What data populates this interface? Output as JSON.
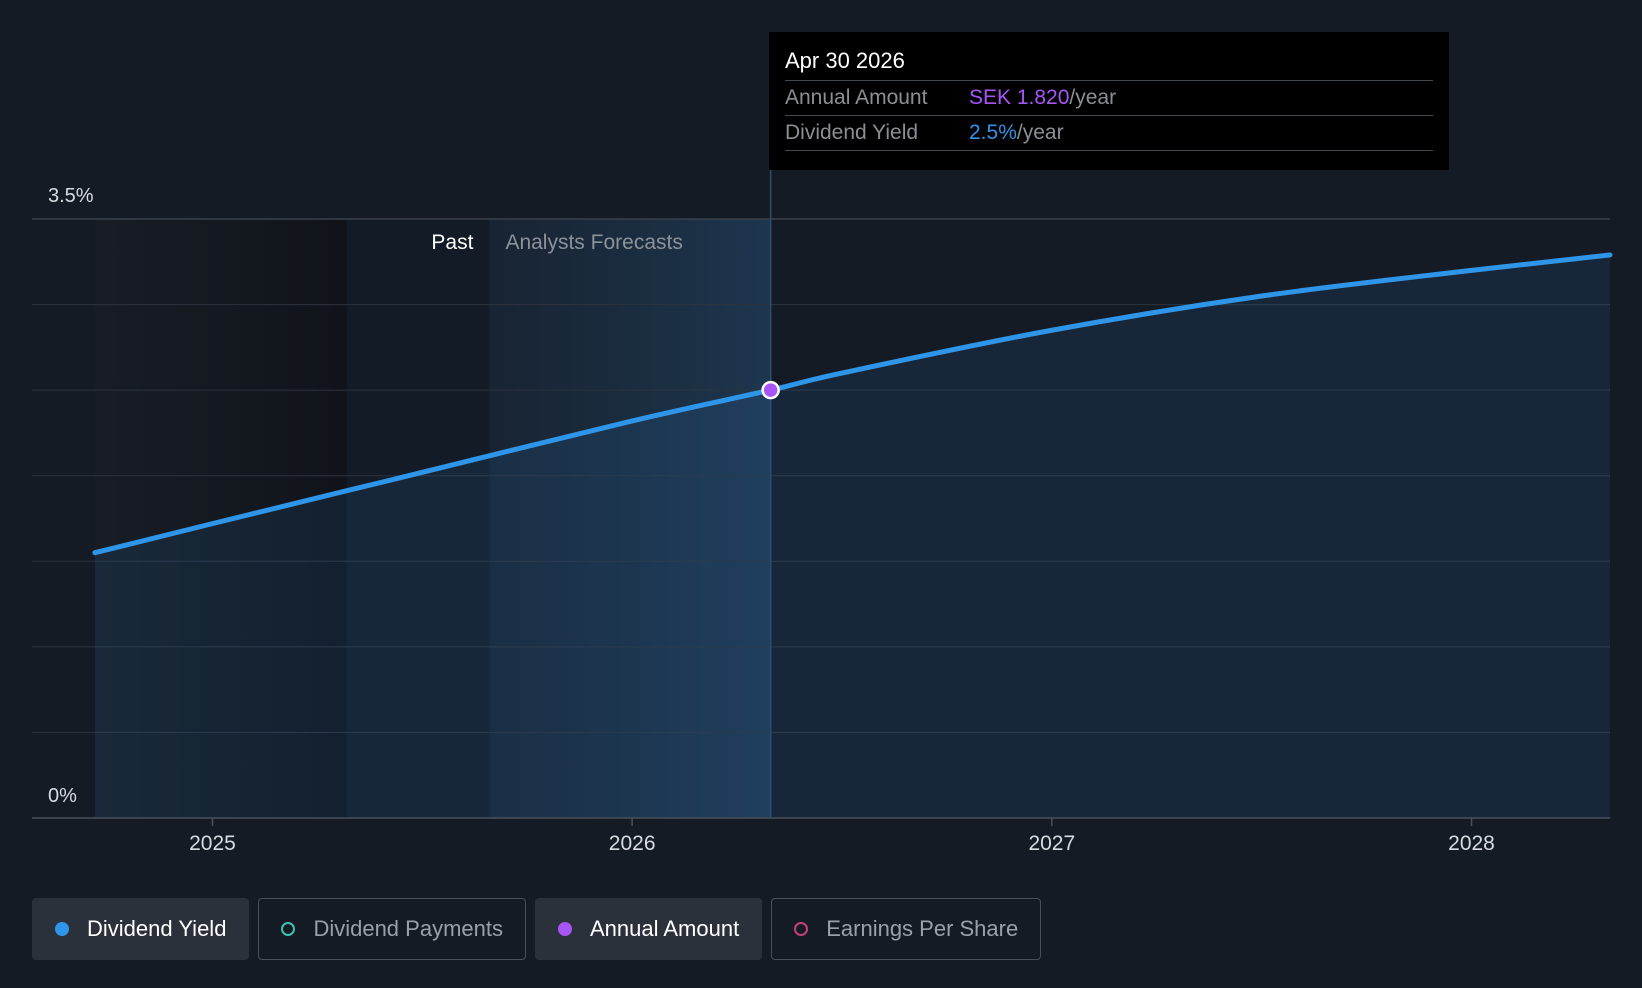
{
  "chart_data": {
    "type": "area",
    "series": [
      {
        "name": "Dividend Yield",
        "unit": "%",
        "x": [
          2024.72,
          2025.0,
          2025.5,
          2026.0,
          2026.33,
          2026.5,
          2027.0,
          2027.5,
          2028.0,
          2028.33
        ],
        "values": [
          1.55,
          1.72,
          2.02,
          2.32,
          2.5,
          2.6,
          2.85,
          3.05,
          3.2,
          3.29
        ]
      }
    ],
    "yticks": [
      {
        "value": 0,
        "label": "0%"
      },
      {
        "value": 3.5,
        "label": "3.5%"
      }
    ],
    "ylim": [
      0,
      3.5
    ],
    "gridlines": [
      0.5,
      1.0,
      1.5,
      2.0,
      2.5,
      3.0,
      3.5
    ],
    "xticks": [
      {
        "value": 2025,
        "label": "2025"
      },
      {
        "value": 2026,
        "label": "2026"
      },
      {
        "value": 2027,
        "label": "2027"
      },
      {
        "value": 2028,
        "label": "2028"
      }
    ],
    "xlim": [
      2024.57,
      2028.33
    ],
    "past_start": 2025.32,
    "forecast_start": 2025.66,
    "highlight_end": 2026.33,
    "region_labels": {
      "past": "Past",
      "forecast": "Analysts Forecasts"
    },
    "marker": {
      "x": 2026.33,
      "y": 2.5
    }
  },
  "tooltip": {
    "date": "Apr 30 2026",
    "rows": [
      {
        "label": "Annual Amount",
        "value": "SEK 1.820",
        "unit": "/year"
      },
      {
        "label": "Dividend Yield",
        "value": "2.5%",
        "unit": "/year"
      }
    ]
  },
  "legend": [
    {
      "label": "Dividend Yield",
      "color": "#2f95e8",
      "active": true
    },
    {
      "label": "Dividend Payments",
      "color": "#3fc1b0",
      "active": false
    },
    {
      "label": "Annual Amount",
      "color": "#a855f7",
      "active": true
    },
    {
      "label": "Earnings Per Share",
      "color": "#c0417a",
      "active": false
    }
  ],
  "colors": {
    "background": "#151b25",
    "line": "#2f95e8",
    "marker": "#a855f7",
    "grid": "#2c333d"
  }
}
